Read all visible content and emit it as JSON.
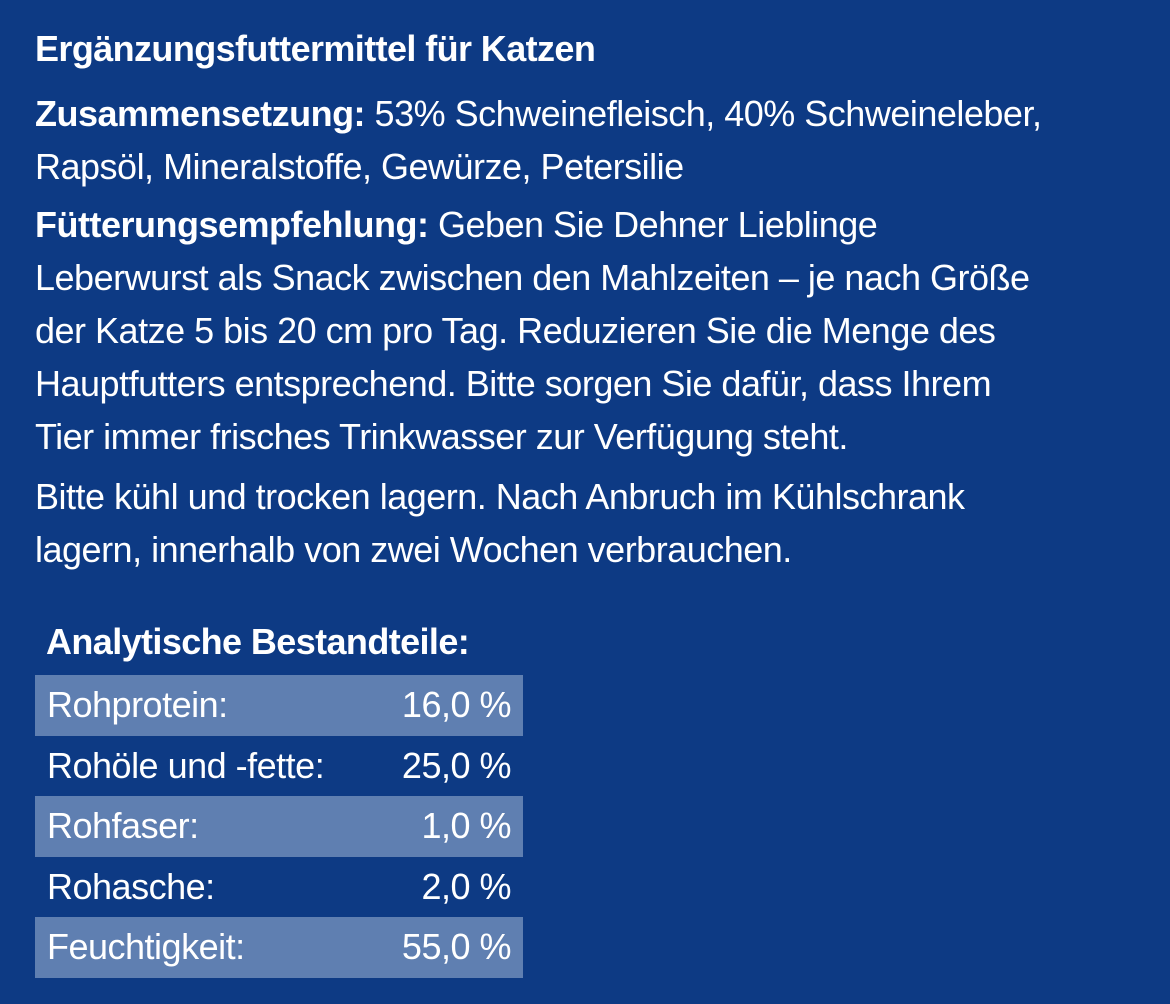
{
  "title": "Ergänzungsfuttermittel für Katzen",
  "composition": {
    "label": "Zusammensetzung:",
    "line1": " 53% Schweinefleisch, 40% Schweineleber,",
    "line2": "Rapsöl, Mineralstoffe, Gewürze, Petersilie"
  },
  "feeding": {
    "label": "Fütterungsempfehlung:",
    "line1": " Geben Sie Dehner Lieblinge",
    "line2": "Leberwurst als Snack zwischen den Mahlzeiten – je nach Größe",
    "line3": "der Katze 5 bis 20 cm pro Tag. Reduzieren Sie die Menge des",
    "line4": "Hauptfutters entsprechend. Bitte sorgen Sie dafür, dass Ihrem",
    "line5": "Tier immer frisches Trinkwasser zur Verfügung steht."
  },
  "storage": {
    "line1": "Bitte kühl und trocken lagern. Nach Anbruch im Kühlschrank",
    "line2": "lagern, innerhalb von zwei Wochen verbrauchen."
  },
  "analytics": {
    "heading": "Analytische Bestandteile:",
    "rows": [
      {
        "label": "Rohprotein:",
        "value": "16,0 %"
      },
      {
        "label": "Rohöle und -fette:",
        "value": "25,0 %"
      },
      {
        "label": "Rohfaser:",
        "value": "1,0 %"
      },
      {
        "label": "Rohasche:",
        "value": "2,0 %"
      },
      {
        "label": "Feuchtigkeit:",
        "value": "55,0 %"
      }
    ]
  },
  "colors": {
    "background": "#0d3a84",
    "row_shade": "#5f7fb1",
    "text": "#ffffff"
  }
}
